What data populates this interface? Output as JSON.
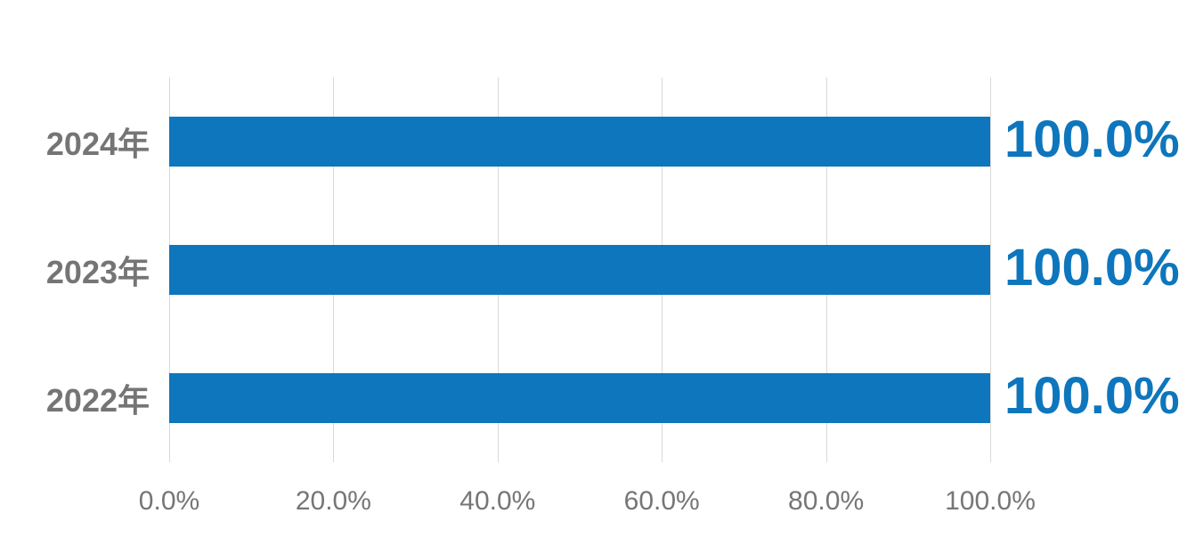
{
  "chart_data": {
    "type": "bar",
    "orientation": "horizontal",
    "title": "",
    "xlabel": "",
    "ylabel": "",
    "categories": [
      "2024年",
      "2023年",
      "2022年"
    ],
    "series": [
      {
        "name": "",
        "values": [
          100.0,
          100.0,
          100.0
        ]
      }
    ],
    "data_labels": [
      "100.0%",
      "100.0%",
      "100.0%"
    ],
    "x_ticks": [
      "0.0%",
      "20.0%",
      "40.0%",
      "60.0%",
      "80.0%",
      "100.0%"
    ],
    "x_tick_values": [
      0,
      20,
      40,
      60,
      80,
      100
    ],
    "xlim": [
      0,
      100
    ],
    "grid": "vertical",
    "legend": "none",
    "colors": {
      "bar": "#0e76bc",
      "data_label": "#0e76bc",
      "category_label": "#757575",
      "tick_label": "#767676",
      "gridline": "#d9d9d9",
      "background": "#ffffff"
    }
  }
}
